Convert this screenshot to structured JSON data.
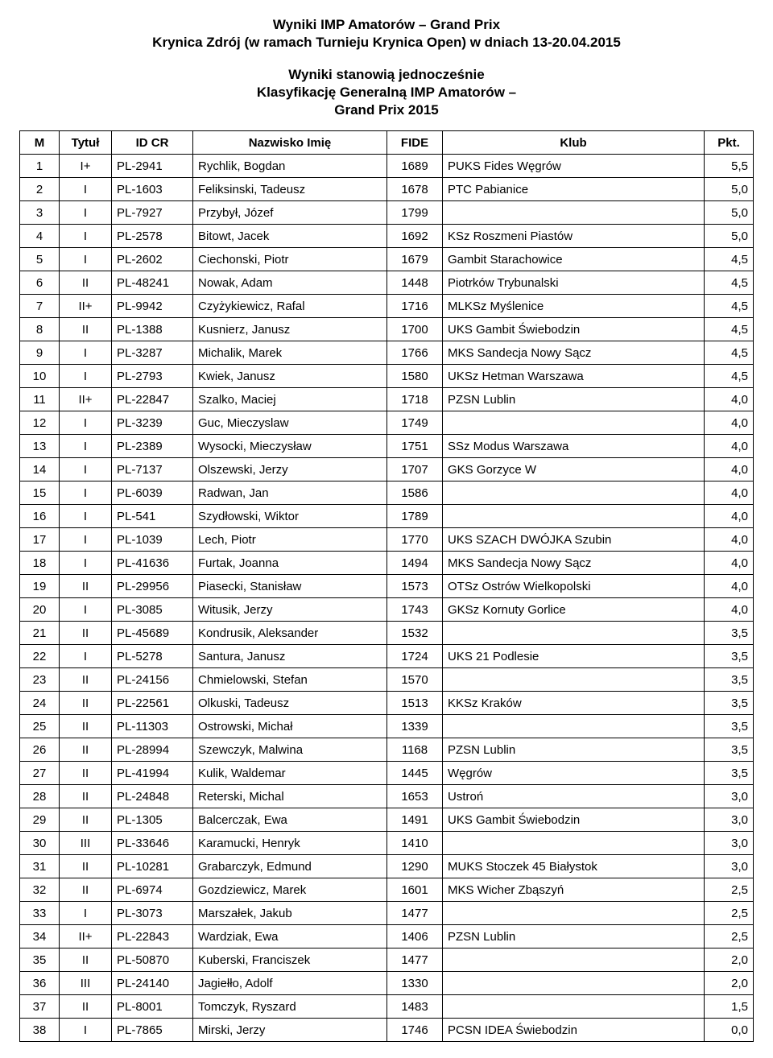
{
  "header": {
    "title_line1": "Wyniki IMP Amatorów – Grand Prix",
    "title_line2": "Krynica Zdrój (w ramach Turnieju Krynica Open) w dniach 13-20.04.2015",
    "subtitle_line1": "Wyniki stanowią jednocześnie",
    "subtitle_line2": "Klasyfikację Generalną IMP Amatorów –",
    "subtitle_line3": "Grand Prix 2015"
  },
  "table": {
    "columns": [
      "M",
      "Tytuł",
      "ID CR",
      "Nazwisko Imię",
      "FIDE",
      "Klub",
      "Pkt."
    ],
    "rows": [
      {
        "m": "1",
        "tyt": "I+",
        "id": "PL-2941",
        "name": "Rychlik, Bogdan",
        "fide": "1689",
        "klub": "PUKS Fides Węgrów",
        "pkt": "5,5"
      },
      {
        "m": "2",
        "tyt": "I",
        "id": "PL-1603",
        "name": "Feliksinski, Tadeusz",
        "fide": "1678",
        "klub": "PTC Pabianice",
        "pkt": "5,0"
      },
      {
        "m": "3",
        "tyt": "I",
        "id": "PL-7927",
        "name": "Przybył, Józef",
        "fide": "1799",
        "klub": "",
        "pkt": "5,0"
      },
      {
        "m": "4",
        "tyt": "I",
        "id": "PL-2578",
        "name": "Bitowt, Jacek",
        "fide": "1692",
        "klub": "KSz Roszmeni Piastów",
        "pkt": "5,0"
      },
      {
        "m": "5",
        "tyt": "I",
        "id": "PL-2602",
        "name": "Ciechonski, Piotr",
        "fide": "1679",
        "klub": "Gambit Starachowice",
        "pkt": "4,5"
      },
      {
        "m": "6",
        "tyt": "II",
        "id": "PL-48241",
        "name": "Nowak, Adam",
        "fide": "1448",
        "klub": "Piotrków Trybunalski",
        "pkt": "4,5"
      },
      {
        "m": "7",
        "tyt": "II+",
        "id": "PL-9942",
        "name": "Czyżykiewicz, Rafal",
        "fide": "1716",
        "klub": "MLKSz Myślenice",
        "pkt": "4,5"
      },
      {
        "m": "8",
        "tyt": "II",
        "id": "PL-1388",
        "name": "Kusnierz, Janusz",
        "fide": "1700",
        "klub": "UKS Gambit Świebodzin",
        "pkt": "4,5"
      },
      {
        "m": "9",
        "tyt": "I",
        "id": "PL-3287",
        "name": "Michalik, Marek",
        "fide": "1766",
        "klub": "MKS Sandecja Nowy Sącz",
        "pkt": "4,5"
      },
      {
        "m": "10",
        "tyt": "I",
        "id": "PL-2793",
        "name": "Kwiek, Janusz",
        "fide": "1580",
        "klub": "UKSz Hetman Warszawa",
        "pkt": "4,5"
      },
      {
        "m": "11",
        "tyt": "II+",
        "id": "PL-22847",
        "name": "Szalko, Maciej",
        "fide": "1718",
        "klub": "PZSN Lublin",
        "pkt": "4,0"
      },
      {
        "m": "12",
        "tyt": "I",
        "id": "PL-3239",
        "name": "Guc, Mieczyslaw",
        "fide": "1749",
        "klub": "",
        "pkt": "4,0"
      },
      {
        "m": "13",
        "tyt": "I",
        "id": "PL-2389",
        "name": "Wysocki, Mieczysław",
        "fide": "1751",
        "klub": "SSz Modus Warszawa",
        "pkt": "4,0"
      },
      {
        "m": "14",
        "tyt": "I",
        "id": "PL-7137",
        "name": "Olszewski, Jerzy",
        "fide": "1707",
        "klub": "GKS Gorzyce W",
        "pkt": "4,0"
      },
      {
        "m": "15",
        "tyt": "I",
        "id": "PL-6039",
        "name": "Radwan, Jan",
        "fide": "1586",
        "klub": "",
        "pkt": "4,0"
      },
      {
        "m": "16",
        "tyt": "I",
        "id": "PL-541",
        "name": "Szydłowski, Wiktor",
        "fide": "1789",
        "klub": "",
        "pkt": "4,0"
      },
      {
        "m": "17",
        "tyt": "I",
        "id": "PL-1039",
        "name": "Lech, Piotr",
        "fide": "1770",
        "klub": "UKS SZACH DWÓJKA Szubin",
        "pkt": "4,0"
      },
      {
        "m": "18",
        "tyt": "I",
        "id": "PL-41636",
        "name": "Furtak, Joanna",
        "fide": "1494",
        "klub": "MKS Sandecja Nowy Sącz",
        "pkt": "4,0"
      },
      {
        "m": "19",
        "tyt": "II",
        "id": "PL-29956",
        "name": "Piasecki, Stanisław",
        "fide": "1573",
        "klub": "OTSz Ostrów Wielkopolski",
        "pkt": "4,0"
      },
      {
        "m": "20",
        "tyt": "I",
        "id": "PL-3085",
        "name": "Witusik, Jerzy",
        "fide": "1743",
        "klub": "GKSz Kornuty Gorlice",
        "pkt": "4,0"
      },
      {
        "m": "21",
        "tyt": "II",
        "id": "PL-45689",
        "name": "Kondrusik, Aleksander",
        "fide": "1532",
        "klub": "",
        "pkt": "3,5"
      },
      {
        "m": "22",
        "tyt": "I",
        "id": "PL-5278",
        "name": "Santura, Janusz",
        "fide": "1724",
        "klub": "UKS 21 Podlesie",
        "pkt": "3,5"
      },
      {
        "m": "23",
        "tyt": "II",
        "id": "PL-24156",
        "name": "Chmielowski, Stefan",
        "fide": "1570",
        "klub": "",
        "pkt": "3,5"
      },
      {
        "m": "24",
        "tyt": "II",
        "id": "PL-22561",
        "name": "Olkuski, Tadeusz",
        "fide": "1513",
        "klub": "KKSz Kraków",
        "pkt": "3,5"
      },
      {
        "m": "25",
        "tyt": "II",
        "id": "PL-11303",
        "name": "Ostrowski, Michał",
        "fide": "1339",
        "klub": "",
        "pkt": "3,5"
      },
      {
        "m": "26",
        "tyt": "II",
        "id": "PL-28994",
        "name": "Szewczyk, Malwina",
        "fide": "1168",
        "klub": "PZSN Lublin",
        "pkt": "3,5"
      },
      {
        "m": "27",
        "tyt": "II",
        "id": "PL-41994",
        "name": "Kulik, Waldemar",
        "fide": "1445",
        "klub": "Węgrów",
        "pkt": "3,5"
      },
      {
        "m": "28",
        "tyt": "II",
        "id": "PL-24848",
        "name": "Reterski, Michal",
        "fide": "1653",
        "klub": "Ustroń",
        "pkt": "3,0"
      },
      {
        "m": "29",
        "tyt": "II",
        "id": "PL-1305",
        "name": "Balcerczak, Ewa",
        "fide": "1491",
        "klub": "UKS Gambit Świebodzin",
        "pkt": "3,0"
      },
      {
        "m": "30",
        "tyt": "III",
        "id": "PL-33646",
        "name": "Karamucki, Henryk",
        "fide": "1410",
        "klub": "",
        "pkt": "3,0"
      },
      {
        "m": "31",
        "tyt": "II",
        "id": "PL-10281",
        "name": "Grabarczyk, Edmund",
        "fide": "1290",
        "klub": "MUKS Stoczek 45 Białystok",
        "pkt": "3,0"
      },
      {
        "m": "32",
        "tyt": "II",
        "id": "PL-6974",
        "name": "Gozdziewicz, Marek",
        "fide": "1601",
        "klub": "MKS Wicher Zbąszyń",
        "pkt": "2,5"
      },
      {
        "m": "33",
        "tyt": "I",
        "id": "PL-3073",
        "name": "Marszałek, Jakub",
        "fide": "1477",
        "klub": "",
        "pkt": "2,5"
      },
      {
        "m": "34",
        "tyt": "II+",
        "id": "PL-22843",
        "name": "Wardziak, Ewa",
        "fide": "1406",
        "klub": "PZSN Lublin",
        "pkt": "2,5"
      },
      {
        "m": "35",
        "tyt": "II",
        "id": "PL-50870",
        "name": "Kuberski, Franciszek",
        "fide": "1477",
        "klub": "",
        "pkt": "2,0"
      },
      {
        "m": "36",
        "tyt": "III",
        "id": "PL-24140",
        "name": "Jagiełło, Adolf",
        "fide": "1330",
        "klub": "",
        "pkt": "2,0"
      },
      {
        "m": "37",
        "tyt": "II",
        "id": "PL-8001",
        "name": "Tomczyk, Ryszard",
        "fide": "1483",
        "klub": "",
        "pkt": "1,5"
      },
      {
        "m": "38",
        "tyt": "I",
        "id": "PL-7865",
        "name": "Mirski, Jerzy",
        "fide": "1746",
        "klub": "PCSN IDEA Świebodzin",
        "pkt": "0,0"
      }
    ]
  }
}
